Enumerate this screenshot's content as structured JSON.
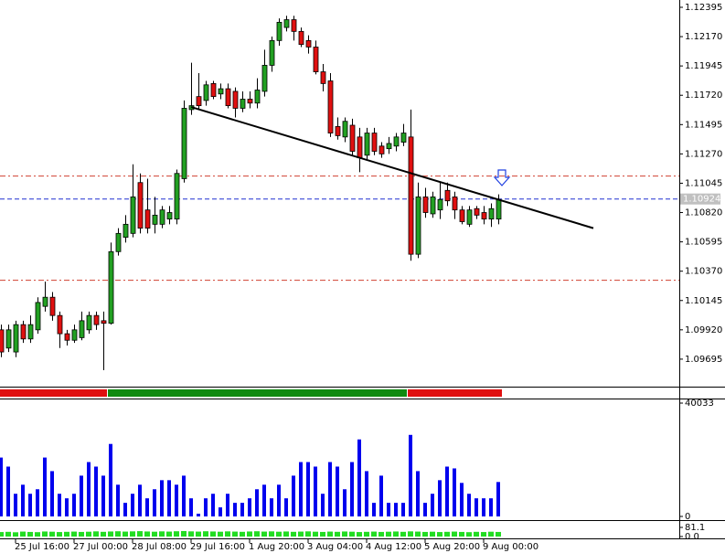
{
  "chart_data": [
    {
      "type": "candlestick",
      "categories": [
        null,
        null,
        "25 Jul 16:00",
        null,
        null,
        null,
        null,
        null,
        null,
        null,
        "27 Jul 00:00",
        null,
        null,
        null,
        null,
        null,
        null,
        null,
        "28 Jul 08:00",
        null,
        null,
        null,
        null,
        null,
        null,
        null,
        "29 Jul 16:00",
        null,
        null,
        null,
        null,
        null,
        null,
        null,
        "1 Aug 20:00",
        null,
        null,
        null,
        null,
        null,
        null,
        null,
        "3 Aug 04:00",
        null,
        null,
        null,
        null,
        null,
        null,
        null,
        "4 Aug 12:00",
        null,
        null,
        null,
        null,
        null,
        null,
        null,
        "5 Aug 20:00",
        null,
        null,
        null,
        null,
        null,
        null,
        null,
        "9 Aug 00:00",
        null,
        null
      ],
      "open": [
        1.0992,
        1.0978,
        1.0975,
        1.0996,
        1.0985,
        1.0992,
        1.101,
        1.1017,
        1.1003,
        1.0989,
        1.0984,
        1.0986,
        1.0992,
        1.1003,
        1.0999,
        1.0997,
        1.1052,
        1.1063,
        1.1066,
        1.1105,
        1.1084,
        1.1073,
        1.1073,
        1.1077,
        1.1077,
        1.1108,
        1.1161,
        1.1171,
        1.1168,
        1.1181,
        1.1173,
        1.1177,
        1.1175,
        1.1162,
        1.1169,
        1.1166,
        1.1175,
        1.1195,
        1.1214,
        1.1224,
        1.123,
        1.1221,
        1.1214,
        1.1209,
        1.119,
        1.1183,
        1.1148,
        1.114,
        1.1149,
        1.114,
        1.1126,
        1.1143,
        1.1133,
        1.1131,
        1.1133,
        1.1136,
        1.114,
        1.105,
        1.1094,
        1.1081,
        1.1084,
        1.1099,
        1.1094,
        1.1084,
        1.1073,
        1.1085,
        1.1082,
        1.1077,
        1.1077
      ],
      "high": [
        1.0996,
        1.0996,
        1.0999,
        1.0999,
        1.1003,
        1.1017,
        1.1029,
        1.1021,
        1.1006,
        1.0992,
        1.0996,
        1.1006,
        1.1006,
        1.1006,
        1.1006,
        1.1059,
        1.107,
        1.108,
        1.1119,
        1.1112,
        1.1108,
        1.1094,
        1.1087,
        1.1087,
        1.1115,
        1.1168,
        1.1197,
        1.1189,
        1.1183,
        1.1183,
        1.1181,
        1.1181,
        1.1178,
        1.1175,
        1.1175,
        1.1185,
        1.1207,
        1.1217,
        1.1231,
        1.1233,
        1.1233,
        1.1224,
        1.1218,
        1.1214,
        1.1196,
        1.1189,
        1.1155,
        1.1155,
        1.1154,
        1.1147,
        1.1147,
        1.1147,
        1.1136,
        1.114,
        1.1143,
        1.115,
        1.1161,
        1.1105,
        1.1101,
        1.1098,
        1.1105,
        1.1105,
        1.1098,
        1.1087,
        1.1087,
        1.1087,
        1.1087,
        1.1089,
        1.1096
      ],
      "low": [
        1.0971,
        1.0975,
        1.0971,
        1.0982,
        1.0982,
        1.0989,
        1.1006,
        1.0999,
        1.0978,
        1.098,
        1.0982,
        1.0984,
        1.0989,
        1.0992,
        1.0961,
        1.0996,
        1.1049,
        1.1059,
        1.1063,
        1.1066,
        1.1066,
        1.1066,
        1.107,
        1.1073,
        1.1073,
        1.1105,
        1.1157,
        1.1161,
        1.1164,
        1.1169,
        1.1169,
        1.1162,
        1.1155,
        1.1159,
        1.1162,
        1.1162,
        1.1171,
        1.119,
        1.121,
        1.1221,
        1.1214,
        1.1209,
        1.1204,
        1.1188,
        1.1175,
        1.114,
        1.1138,
        1.1136,
        1.1126,
        1.1113,
        1.1122,
        1.1126,
        1.1124,
        1.1127,
        1.1129,
        1.1133,
        1.1045,
        1.1047,
        1.1078,
        1.1078,
        1.1077,
        1.1087,
        1.1077,
        1.1073,
        1.1071,
        1.1077,
        1.1073,
        1.1071,
        1.1073
      ],
      "close": [
        1.0975,
        1.0992,
        1.0996,
        1.0985,
        1.0996,
        1.1013,
        1.1017,
        1.1003,
        1.0989,
        1.0984,
        1.0992,
        1.0999,
        1.1003,
        1.0996,
        1.0997,
        1.1052,
        1.1066,
        1.1073,
        1.1094,
        1.107,
        1.107,
        1.108,
        1.1084,
        1.1082,
        1.1112,
        1.1162,
        1.1164,
        1.1164,
        1.118,
        1.1171,
        1.1177,
        1.1164,
        1.1162,
        1.1169,
        1.1166,
        1.1176,
        1.1195,
        1.1214,
        1.1228,
        1.123,
        1.1221,
        1.1211,
        1.1209,
        1.119,
        1.1181,
        1.1143,
        1.1141,
        1.1152,
        1.1129,
        1.1124,
        1.1143,
        1.1129,
        1.1127,
        1.1135,
        1.114,
        1.1143,
        1.105,
        1.1094,
        1.1082,
        1.1094,
        1.1092,
        1.1091,
        1.1084,
        1.1075,
        1.1084,
        1.108,
        1.1077,
        1.1085,
        1.1092
      ],
      "up_color": "#22a022",
      "down_color": "#e01010",
      "ylim": [
        1.09491,
        1.12451
      ],
      "yticks": [
        1.12395,
        {
          "value": 1.1217,
          "label": "1.12170"
        },
        1.11945,
        {
          "value": 1.1172,
          "label": "1.11720"
        },
        1.11495,
        {
          "value": 1.1127,
          "label": "1.11270"
        },
        1.11045,
        {
          "value": 1.1082,
          "label": "1.10820"
        },
        1.10595,
        {
          "value": 1.1037,
          "label": "1.10370"
        },
        1.10145,
        {
          "value": 1.0992,
          "label": "1.09920"
        },
        1.09695
      ],
      "current_price": {
        "value": 1.10924,
        "label": "1.10924"
      },
      "hlines": [
        {
          "value": 1.111,
          "color": "#d04030",
          "dash": "6 3 2 3"
        },
        {
          "value": 1.103,
          "color": "#d04030",
          "dash": "6 3 2 3"
        },
        {
          "value": 1.10924,
          "color": "#2030d0",
          "dash": "5 3"
        }
      ],
      "trendline": {
        "x": [
          26,
          81
        ],
        "y": [
          1.1163,
          1.107
        ],
        "color": "#000000"
      },
      "signal": [
        {
          "from": 0,
          "to": 14,
          "color": "#e01010"
        },
        {
          "from": 15,
          "to": 55,
          "color": "#108a10"
        },
        {
          "from": 56,
          "to": 68,
          "color": "#e01010"
        }
      ]
    },
    {
      "type": "bar",
      "color": "#0000ee",
      "values": [
        20800,
        17600,
        8000,
        11200,
        8000,
        9600,
        20800,
        16000,
        8000,
        6400,
        8000,
        14400,
        19200,
        17600,
        14400,
        25600,
        11200,
        4800,
        8000,
        11200,
        6400,
        9600,
        12800,
        12800,
        11200,
        14400,
        6400,
        960,
        6400,
        8000,
        3200,
        8000,
        4800,
        4800,
        6400,
        9600,
        11200,
        6400,
        11200,
        6400,
        14400,
        19200,
        19200,
        17600,
        8000,
        19200,
        17600,
        9600,
        19200,
        27200,
        16000,
        4800,
        14400,
        4800,
        4800,
        4800,
        28800,
        16000,
        4800,
        8000,
        12800,
        17600,
        16960,
        11840,
        8000,
        6400,
        6400,
        6400,
        12160
      ],
      "ylim": [
        0,
        40033
      ],
      "yticks": [
        0,
        40033
      ]
    },
    {
      "type": "bar",
      "color": "#22dd22",
      "values": [
        40,
        42,
        38,
        44,
        41,
        39,
        45,
        43,
        40,
        42,
        44,
        41,
        43,
        46,
        42,
        45,
        47,
        44,
        46,
        48,
        45,
        43,
        46,
        44,
        47,
        49,
        46,
        44,
        47,
        45,
        43,
        46,
        44,
        42,
        45,
        47,
        44,
        46,
        43,
        45,
        42,
        44,
        46,
        43,
        41,
        44,
        42,
        45,
        43,
        40,
        42,
        44,
        41,
        43,
        45,
        42,
        46,
        44,
        41,
        43,
        40,
        42,
        44,
        41,
        39,
        42,
        40,
        43,
        41
      ],
      "ylim": [
        0,
        81.1
      ],
      "yticks": [
        81.1,
        {
          "value": 0,
          "label": "0.0"
        }
      ]
    }
  ]
}
